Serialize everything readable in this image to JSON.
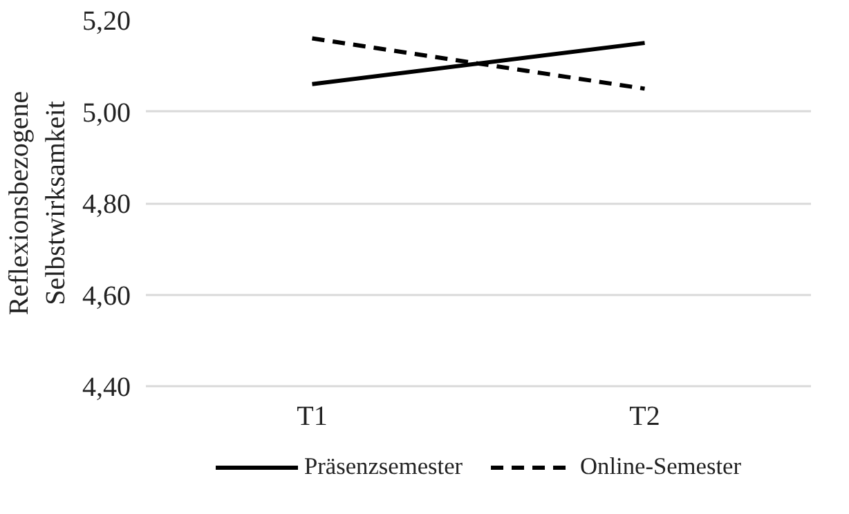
{
  "chart_data": {
    "type": "line",
    "ylabel": "Reflexionsbezogene\nSelbstwirksamkeit",
    "categories": [
      "T1",
      "T2"
    ],
    "series": [
      {
        "name": "Präsenzsemester",
        "color": "#000000",
        "values": [
          5.06,
          5.15
        ],
        "line_style": "solid"
      },
      {
        "name": "Online-Semester",
        "color": "#000000",
        "values": [
          5.16,
          5.05
        ],
        "line_style": "dashed"
      }
    ],
    "ylim": [
      4.4,
      5.2
    ],
    "yticks": [
      {
        "value": 4.4,
        "label": "4,40"
      },
      {
        "value": 4.6,
        "label": "4,60"
      },
      {
        "value": 4.8,
        "label": "4,80"
      },
      {
        "value": 5.0,
        "label": "5,00"
      },
      {
        "value": 5.2,
        "label": "5,20"
      }
    ],
    "grid": "y",
    "legend": "bottom",
    "marker": "none"
  }
}
